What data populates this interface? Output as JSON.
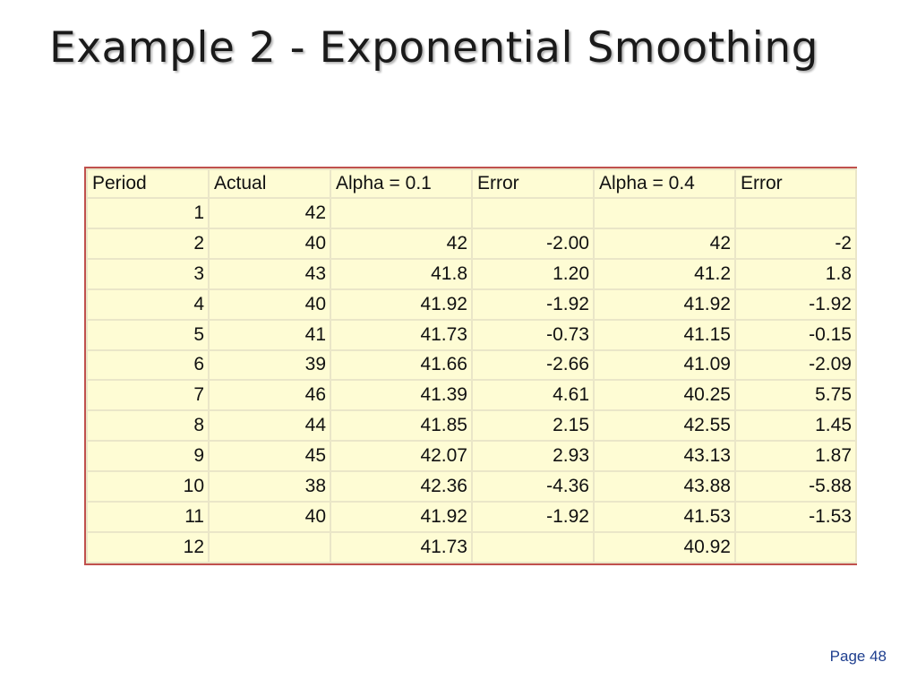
{
  "slide": {
    "title": "Example 2 - Exponential Smoothing",
    "page": "Page 48"
  },
  "table": {
    "headers": [
      "Period",
      "Actual",
      "Alpha = 0.1",
      "Error",
      "Alpha = 0.4",
      "Error"
    ],
    "rows": [
      [
        "1",
        "42",
        "",
        "",
        "",
        ""
      ],
      [
        "2",
        "40",
        "42",
        "-2.00",
        "42",
        "-2"
      ],
      [
        "3",
        "43",
        "41.8",
        "1.20",
        "41.2",
        "1.8"
      ],
      [
        "4",
        "40",
        "41.92",
        "-1.92",
        "41.92",
        "-1.92"
      ],
      [
        "5",
        "41",
        "41.73",
        "-0.73",
        "41.15",
        "-0.15"
      ],
      [
        "6",
        "39",
        "41.66",
        "-2.66",
        "41.09",
        "-2.09"
      ],
      [
        "7",
        "46",
        "41.39",
        "4.61",
        "40.25",
        "5.75"
      ],
      [
        "8",
        "44",
        "41.85",
        "2.15",
        "42.55",
        "1.45"
      ],
      [
        "9",
        "45",
        "42.07",
        "2.93",
        "43.13",
        "1.87"
      ],
      [
        "10",
        "38",
        "42.36",
        "-4.36",
        "43.88",
        "-5.88"
      ],
      [
        "11",
        "40",
        "41.92",
        "-1.92",
        "41.53",
        "-1.53"
      ],
      [
        "12",
        "",
        "41.73",
        "",
        "40.92",
        ""
      ]
    ]
  },
  "colors": {
    "table_border": "#c0504d",
    "cell_fill": "#fefcd4",
    "grid_line": "#eae6c8",
    "page_number": "#1f3f8f"
  }
}
